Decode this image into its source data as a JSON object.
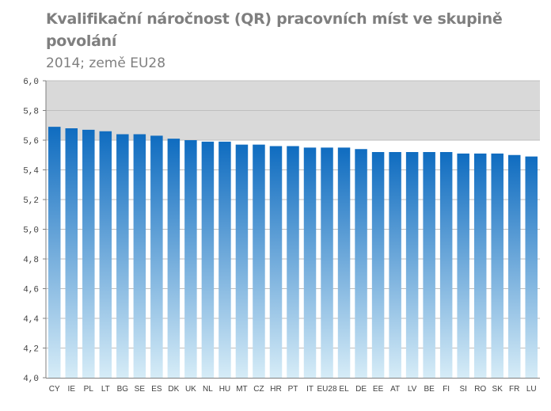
{
  "chart_data": {
    "type": "bar",
    "title": "Kvalifikační náročnost (QR) pracovních míst ve skupině povolání",
    "subtitle": "2014; země EU28",
    "categories": [
      "CY",
      "IE",
      "PL",
      "LT",
      "BG",
      "SE",
      "ES",
      "DK",
      "UK",
      "NL",
      "HU",
      "MT",
      "CZ",
      "HR",
      "PT",
      "IT",
      "EU28",
      "EL",
      "DE",
      "EE",
      "AT",
      "LV",
      "BE",
      "FI",
      "SI",
      "RO",
      "SK",
      "FR",
      "LU"
    ],
    "values": [
      5.69,
      5.68,
      5.67,
      5.66,
      5.64,
      5.64,
      5.63,
      5.61,
      5.6,
      5.59,
      5.59,
      5.57,
      5.57,
      5.56,
      5.56,
      5.55,
      5.55,
      5.55,
      5.54,
      5.52,
      5.52,
      5.52,
      5.52,
      5.52,
      5.51,
      5.51,
      5.51,
      5.5,
      5.49
    ],
    "yticks": [
      "4,0",
      "4,2",
      "4,4",
      "4,6",
      "4,8",
      "5,0",
      "5,2",
      "5,4",
      "5,6",
      "5,8",
      "6,0"
    ],
    "ylim": [
      4.0,
      6.0
    ],
    "grid": true,
    "shaded_band": [
      5.6,
      6.0
    ],
    "colors": {
      "bar_top": "#0f6cc0",
      "bar_bottom": "#d6ecf7",
      "band": "#d9d9d9",
      "grid": "#bfbfbf",
      "axis": "#808080"
    }
  }
}
